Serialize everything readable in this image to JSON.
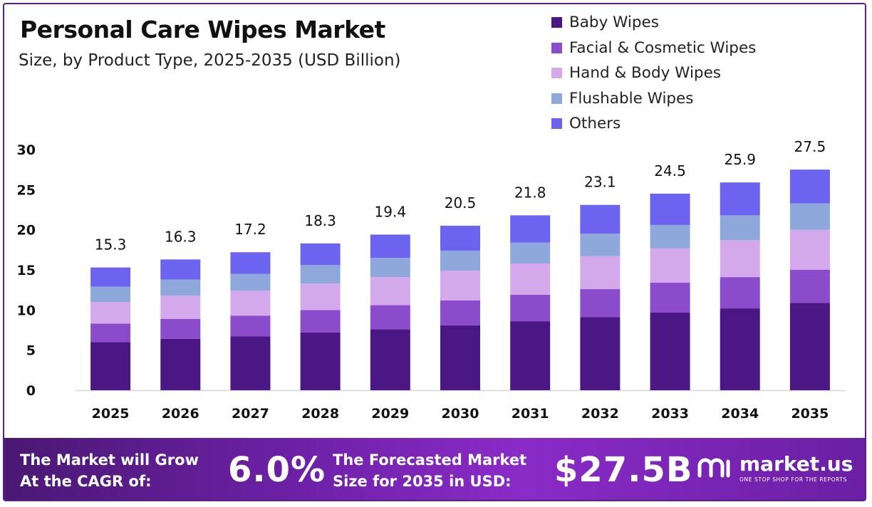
{
  "header": {
    "title": "Personal Care Wipes Market",
    "subtitle": "Size, by Product Type, 2025-2035 (USD Billion)"
  },
  "chart_data": {
    "type": "bar",
    "stacked": true,
    "categories": [
      "2025",
      "2026",
      "2027",
      "2028",
      "2029",
      "2030",
      "2031",
      "2032",
      "2033",
      "2034",
      "2035"
    ],
    "series": [
      {
        "name": "Baby Wipes",
        "color": "#4a1785",
        "values": [
          6.0,
          6.4,
          6.7,
          7.2,
          7.6,
          8.1,
          8.6,
          9.1,
          9.7,
          10.2,
          10.9
        ]
      },
      {
        "name": "Facial & Cosmetic Wipes",
        "color": "#8b4ccc",
        "values": [
          2.3,
          2.5,
          2.6,
          2.8,
          3.0,
          3.1,
          3.3,
          3.5,
          3.7,
          3.9,
          4.1
        ]
      },
      {
        "name": "Hand & Body Wipes",
        "color": "#d3a9ec",
        "values": [
          2.7,
          2.9,
          3.1,
          3.3,
          3.5,
          3.7,
          3.9,
          4.1,
          4.3,
          4.6,
          5.0
        ]
      },
      {
        "name": "Flushable Wipes",
        "color": "#8fa8dc",
        "values": [
          1.9,
          2.0,
          2.1,
          2.3,
          2.4,
          2.5,
          2.6,
          2.8,
          2.9,
          3.1,
          3.3
        ]
      },
      {
        "name": "Others",
        "color": "#6c63f1",
        "values": [
          2.4,
          2.5,
          2.7,
          2.7,
          2.9,
          3.1,
          3.4,
          3.6,
          3.9,
          4.1,
          4.2
        ]
      }
    ],
    "totals": [
      "15.3",
      "16.3",
      "17.2",
      "18.3",
      "19.4",
      "20.5",
      "21.8",
      "23.1",
      "24.5",
      "25.9",
      "27.5"
    ],
    "yticks": [
      "0",
      "5",
      "10",
      "15",
      "20",
      "25",
      "30"
    ],
    "ylim": [
      0,
      30
    ],
    "legend_position": "top-right",
    "grid": false
  },
  "banner": {
    "cagr_label_line1": "The Market will Grow",
    "cagr_label_line2": "At the CAGR of:",
    "cagr_value": "6.0%",
    "forecast_label_line1": "The Forecasted Market",
    "forecast_label_line2": "Size for 2035 in USD:",
    "forecast_value": "$27.5B",
    "brand_name": "market.us",
    "brand_tagline": "ONE STOP SHOP FOR THE REPORTS"
  },
  "icons": {
    "brand_logo": "market-us-logo-icon"
  }
}
